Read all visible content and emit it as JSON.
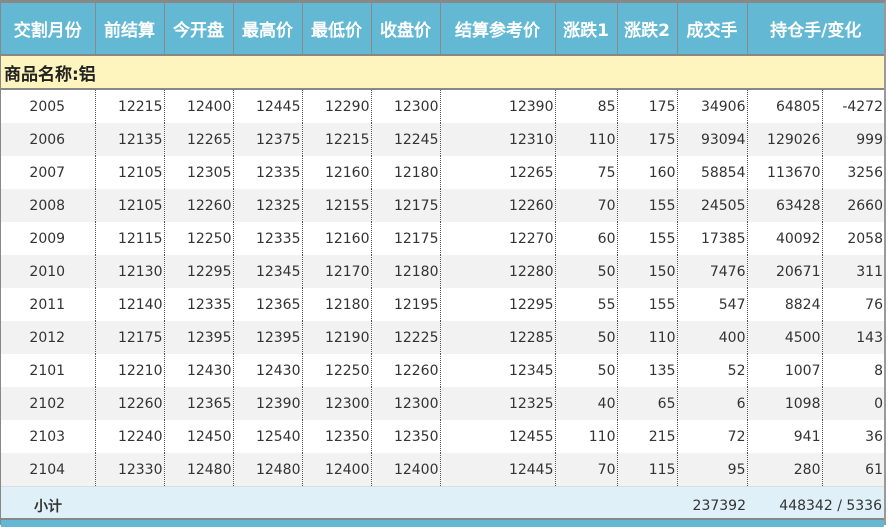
{
  "headers": [
    "交割月份",
    "前结算",
    "今开盘",
    "最高价",
    "最低价",
    "收盘价",
    "结算参考价",
    "涨跌1",
    "涨跌2",
    "成交手",
    "持仓手/变化"
  ],
  "category": "商品名称:铝",
  "rows": [
    [
      "2005",
      "12215",
      "12400",
      "12445",
      "12290",
      "12300",
      "12390",
      "85",
      "175",
      "34906",
      "64805",
      "-4272"
    ],
    [
      "2006",
      "12135",
      "12265",
      "12375",
      "12215",
      "12245",
      "12310",
      "110",
      "175",
      "93094",
      "129026",
      "999"
    ],
    [
      "2007",
      "12105",
      "12305",
      "12335",
      "12160",
      "12180",
      "12265",
      "75",
      "160",
      "58854",
      "113670",
      "3256"
    ],
    [
      "2008",
      "12105",
      "12260",
      "12325",
      "12155",
      "12175",
      "12260",
      "70",
      "155",
      "24505",
      "63428",
      "2660"
    ],
    [
      "2009",
      "12115",
      "12250",
      "12335",
      "12160",
      "12175",
      "12270",
      "60",
      "155",
      "17385",
      "40092",
      "2058"
    ],
    [
      "2010",
      "12130",
      "12295",
      "12345",
      "12170",
      "12180",
      "12280",
      "50",
      "150",
      "7476",
      "20671",
      "311"
    ],
    [
      "2011",
      "12140",
      "12335",
      "12365",
      "12180",
      "12195",
      "12295",
      "55",
      "155",
      "547",
      "8824",
      "76"
    ],
    [
      "2012",
      "12175",
      "12395",
      "12395",
      "12190",
      "12225",
      "12285",
      "50",
      "110",
      "400",
      "4500",
      "143"
    ],
    [
      "2101",
      "12210",
      "12430",
      "12430",
      "12250",
      "12260",
      "12345",
      "50",
      "135",
      "52",
      "1007",
      "8"
    ],
    [
      "2102",
      "12260",
      "12365",
      "12390",
      "12300",
      "12300",
      "12325",
      "40",
      "65",
      "6",
      "1098",
      "0"
    ],
    [
      "2103",
      "12240",
      "12450",
      "12540",
      "12350",
      "12350",
      "12455",
      "110",
      "215",
      "72",
      "941",
      "36"
    ],
    [
      "2104",
      "12330",
      "12480",
      "12480",
      "12400",
      "12400",
      "12445",
      "70",
      "115",
      "95",
      "280",
      "61"
    ]
  ],
  "subtotal": {
    "label": "小计",
    "volume": "237392",
    "open_interest": "448342 / 5336"
  },
  "colors": {
    "header_bg": "#63b8d4",
    "category_bg": "#fef4bd",
    "subtotal_bg": "#e0f0f8",
    "alt_row_bg": "#f2f2f2"
  }
}
